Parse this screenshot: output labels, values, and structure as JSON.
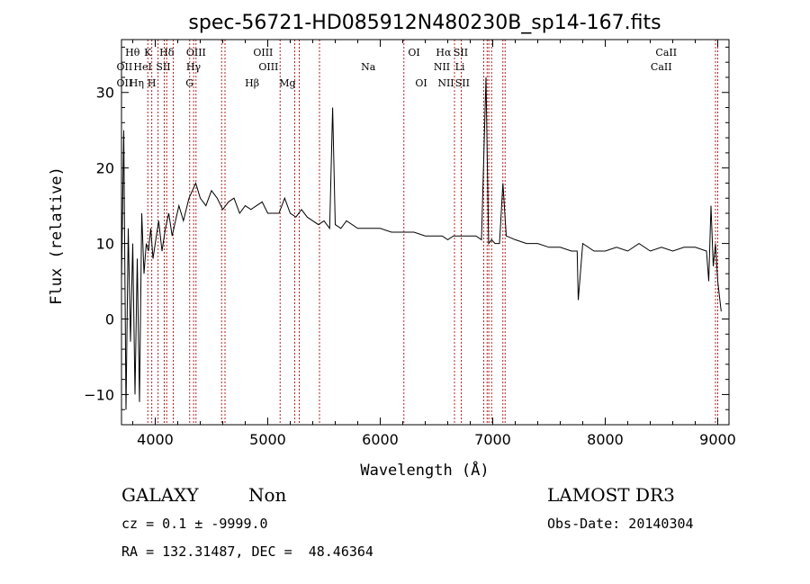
{
  "chart_data": {
    "type": "line",
    "title": "spec-56721-HD085912N480230B_sp14-167.fits",
    "xlabel": "Wavelength (Å)",
    "ylabel": "Flux (relative)",
    "xlim": [
      3700,
      9100
    ],
    "ylim": [
      -14,
      37
    ],
    "xticks": [
      4000,
      5000,
      6000,
      7000,
      8000,
      9000
    ],
    "yticks": [
      -10,
      0,
      10,
      20,
      30
    ],
    "grid": false,
    "series": [
      {
        "name": "spectrum",
        "color": "#000000",
        "x": [
          3700,
          3720,
          3740,
          3760,
          3780,
          3800,
          3820,
          3840,
          3860,
          3880,
          3900,
          3920,
          3940,
          3960,
          3980,
          4000,
          4030,
          4060,
          4090,
          4120,
          4150,
          4180,
          4210,
          4250,
          4300,
          4330,
          4360,
          4400,
          4450,
          4500,
          4550,
          4600,
          4650,
          4700,
          4750,
          4800,
          4850,
          4900,
          4950,
          5000,
          5050,
          5100,
          5150,
          5200,
          5250,
          5300,
          5350,
          5400,
          5450,
          5500,
          5550,
          5577,
          5600,
          5650,
          5700,
          5800,
          5900,
          6000,
          6100,
          6200,
          6300,
          6400,
          6500,
          6550,
          6600,
          6650,
          6700,
          6750,
          6800,
          6850,
          6900,
          6940,
          6963,
          6990,
          7020,
          7060,
          7090,
          7120,
          7200,
          7300,
          7400,
          7500,
          7600,
          7700,
          7750,
          7760,
          7800,
          7900,
          8000,
          8100,
          8200,
          8300,
          8400,
          8500,
          8600,
          8700,
          8800,
          8900,
          8920,
          8940,
          8960,
          8980,
          9000,
          9030
        ],
        "y": [
          5,
          25,
          -12,
          12,
          -3,
          10,
          -10,
          8,
          -11,
          14,
          6,
          10,
          9,
          12,
          8,
          10,
          13,
          9,
          12,
          14,
          11,
          13,
          15,
          13,
          16,
          17,
          18,
          16,
          15,
          17,
          16,
          14.5,
          15.5,
          16,
          14,
          15,
          14.5,
          15,
          15.5,
          14,
          14,
          14,
          16,
          14,
          13.5,
          14.5,
          13.5,
          13,
          12.5,
          13,
          12,
          28,
          12.5,
          12,
          13,
          12,
          12,
          12,
          11.5,
          11.5,
          11.5,
          11,
          11,
          11,
          10.5,
          11,
          11,
          11,
          11,
          11,
          10.5,
          32,
          10,
          10.5,
          10,
          10,
          18,
          11,
          10.5,
          10,
          10,
          9.5,
          9.5,
          9,
          9,
          2.5,
          10,
          9,
          9,
          9.5,
          9,
          10,
          9,
          9.5,
          9,
          9.5,
          9.5,
          9,
          5,
          15,
          7,
          10,
          5,
          1
        ]
      }
    ],
    "lines": [
      {
        "name": "OII",
        "x": 3727,
        "row": 2
      },
      {
        "name": "OII",
        "x": 3727,
        "row": 3
      },
      {
        "name": "Hθ",
        "x": 3798,
        "row": 1
      },
      {
        "name": "Hη",
        "x": 3835,
        "row": 3
      },
      {
        "name": "HeI",
        "x": 3889,
        "row": 2
      },
      {
        "name": "K",
        "x": 3934,
        "row": 1
      },
      {
        "name": "H",
        "x": 3969,
        "row": 3
      },
      {
        "name": "Hδ",
        "x": 4102,
        "row": 1
      },
      {
        "name": "SII",
        "x": 4072,
        "row": 2
      },
      {
        "name": "OIII",
        "x": 4363,
        "row": 1
      },
      {
        "name": "Hγ",
        "x": 4340,
        "row": 2
      },
      {
        "name": "G",
        "x": 4305,
        "row": 3
      },
      {
        "name": "OIII",
        "x": 4959,
        "row": 1
      },
      {
        "name": "OIII",
        "x": 5007,
        "row": 2
      },
      {
        "name": "Hβ",
        "x": 4861,
        "row": 3
      },
      {
        "name": "Mg",
        "x": 5175,
        "row": 3
      },
      {
        "name": "Na",
        "x": 5894,
        "row": 2
      },
      {
        "name": "OI",
        "x": 6300,
        "row": 1
      },
      {
        "name": "OI",
        "x": 6364,
        "row": 3
      },
      {
        "name": "Hα",
        "x": 6563,
        "row": 1
      },
      {
        "name": "SII",
        "x": 6716,
        "row": 1
      },
      {
        "name": "NII",
        "x": 6548,
        "row": 2
      },
      {
        "name": "Li",
        "x": 6708,
        "row": 2
      },
      {
        "name": "NII",
        "x": 6584,
        "row": 3
      },
      {
        "name": "SII",
        "x": 6731,
        "row": 3
      },
      {
        "name": "CaII",
        "x": 8542,
        "row": 1
      },
      {
        "name": "CaII",
        "x": 8498,
        "row": 2
      }
    ],
    "vlines_x": [
      3934,
      3969,
      4025,
      4080,
      4102,
      4160,
      4306,
      4341,
      4362,
      4590,
      4620,
      5110,
      5240,
      5280,
      5460,
      6210,
      6660,
      6720,
      6920,
      6950,
      6965,
      6990,
      7090,
      7110,
      8980,
      9000
    ]
  },
  "info": {
    "object_class": "GALAXY",
    "subclass": "Non",
    "redshift": "cz = 0.1 ± -9999.0",
    "coords": "RA = 132.31487, DEC =  48.46364",
    "survey": "LAMOST DR3",
    "obs_date": "Obs-Date: 20140304"
  },
  "colors": {
    "spectrum": "#000000",
    "marker_line": "#b22222",
    "axes": "#000000"
  }
}
